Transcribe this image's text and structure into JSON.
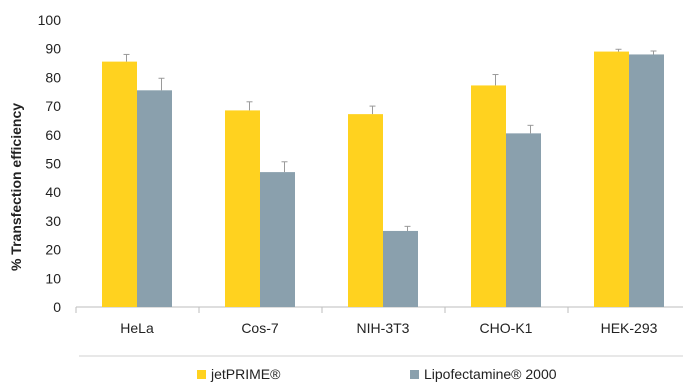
{
  "chart_data": {
    "type": "bar",
    "title": "",
    "xlabel": "",
    "ylabel": "% Transfection efficiency",
    "ylim": [
      0,
      100
    ],
    "yticks": [
      0,
      10,
      20,
      30,
      40,
      50,
      60,
      70,
      80,
      90,
      100
    ],
    "categories": [
      "HeLa",
      "Cos-7",
      "NIH-3T3",
      "CHO-K1",
      "HEK-293"
    ],
    "series": [
      {
        "name": "jetPRIME®",
        "color": "#FFD21F",
        "values": [
          85.5,
          68.5,
          67.2,
          77.2,
          89.0
        ],
        "errors": [
          2.5,
          3.0,
          2.8,
          3.8,
          0.8
        ]
      },
      {
        "name": "Lipofectamine® 2000",
        "color": "#8AA0AD",
        "values": [
          75.5,
          47.0,
          26.5,
          60.5,
          88.0
        ],
        "errors": [
          4.2,
          3.6,
          1.6,
          2.8,
          1.2
        ]
      }
    ],
    "grid": false,
    "legend": "bottom"
  }
}
